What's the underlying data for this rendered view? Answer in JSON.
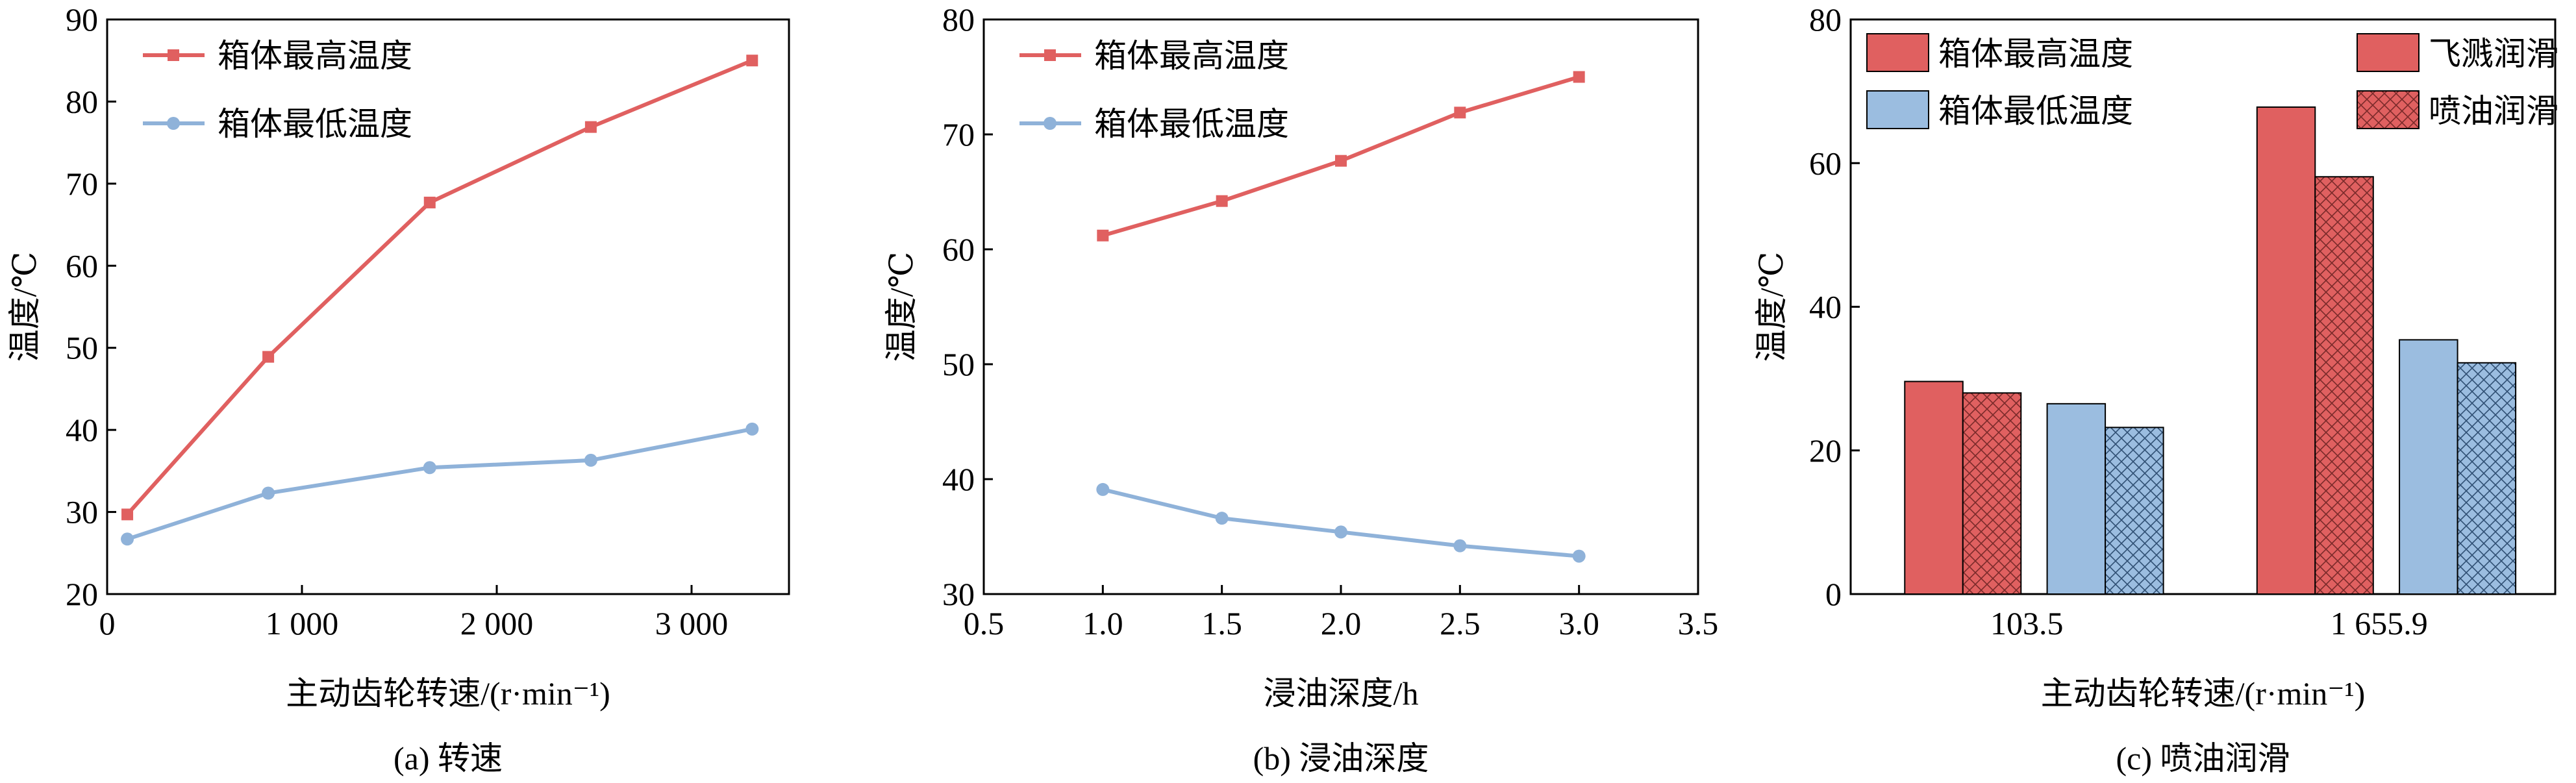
{
  "colors": {
    "red": "#e06060",
    "blue": "#9bbde0",
    "red_dark": "#c0392b",
    "blue_dark": "#4a7ab5",
    "line_red": "#e06060",
    "line_blue": "#8fb2d9"
  },
  "chart_data": [
    {
      "type": "line",
      "caption": "(a)  转速",
      "xlabel": "主动齿轮转速/(r·min⁻¹)",
      "ylabel": "温度/℃",
      "xlim": [
        0,
        3500
      ],
      "ylim": [
        20,
        90
      ],
      "xticks": [
        0,
        1000,
        2000,
        3000
      ],
      "xtick_labels": [
        "0",
        "1 000",
        "2 000",
        "3 000"
      ],
      "yticks": [
        20,
        30,
        40,
        50,
        60,
        70,
        80,
        90
      ],
      "ytick_labels": [
        "20",
        "30",
        "40",
        "50",
        "60",
        "70",
        "80",
        "90"
      ],
      "legend_position": "top-left",
      "series": [
        {
          "name": "箱体最高温度",
          "marker": "square",
          "color": "#e06060",
          "x": [
            103.5,
            827,
            1655.9,
            2483,
            3311
          ],
          "y": [
            29.7,
            48.9,
            67.7,
            76.9,
            85.0
          ]
        },
        {
          "name": "箱体最低温度",
          "marker": "circle",
          "color": "#8fb2d9",
          "x": [
            103.5,
            827,
            1655.9,
            2483,
            3311
          ],
          "y": [
            26.7,
            32.3,
            35.4,
            36.3,
            40.1
          ]
        }
      ]
    },
    {
      "type": "line",
      "caption": "(b)  浸油深度",
      "xlabel": "浸油深度/h",
      "ylabel": "温度/℃",
      "xlim": [
        0.5,
        3.5
      ],
      "ylim": [
        30,
        80
      ],
      "xticks": [
        0.5,
        1.0,
        1.5,
        2.0,
        2.5,
        3.0,
        3.5
      ],
      "xtick_labels": [
        "0.5",
        "1.0",
        "1.5",
        "2.0",
        "2.5",
        "3.0",
        "3.5"
      ],
      "yticks": [
        30,
        40,
        50,
        60,
        70,
        80
      ],
      "ytick_labels": [
        "30",
        "40",
        "50",
        "60",
        "70",
        "80"
      ],
      "legend_position": "top-left",
      "series": [
        {
          "name": "箱体最高温度",
          "marker": "square",
          "color": "#e06060",
          "x": [
            1.0,
            1.5,
            2.0,
            2.5,
            3.0
          ],
          "y": [
            61.2,
            64.2,
            67.7,
            71.9,
            75.0
          ]
        },
        {
          "name": "箱体最低温度",
          "marker": "circle",
          "color": "#8fb2d9",
          "x": [
            1.0,
            1.5,
            2.0,
            2.5,
            3.0
          ],
          "y": [
            39.1,
            36.6,
            35.4,
            34.2,
            33.3
          ]
        }
      ]
    },
    {
      "type": "bar",
      "caption": "(c)  喷油润滑",
      "xlabel": "主动齿轮转速/(r·min⁻¹)",
      "ylabel": "温度/℃",
      "ylim": [
        0,
        80
      ],
      "yticks": [
        0,
        20,
        40,
        60,
        80
      ],
      "ytick_labels": [
        "0",
        "20",
        "40",
        "60",
        "80"
      ],
      "categories": [
        "103.5",
        "1 655.9"
      ],
      "legend_position": "top",
      "legend": [
        {
          "label": "箱体最高温度",
          "color": "#e06060",
          "hatch": false
        },
        {
          "label": "箱体最低温度",
          "color": "#9bbde0",
          "hatch": false
        },
        {
          "label": "飞溅润滑",
          "color": "#e06060",
          "hatch": false
        },
        {
          "label": "喷油润滑",
          "color": "#e06060",
          "hatch": true
        }
      ],
      "series": [
        {
          "name": "箱体最高温度 飞溅润滑",
          "color": "#e06060",
          "hatch": false,
          "values": [
            29.6,
            67.8
          ]
        },
        {
          "name": "箱体最高温度 喷油润滑",
          "color": "#e06060",
          "hatch": true,
          "values": [
            28.0,
            58.1
          ]
        },
        {
          "name": "箱体最低温度 飞溅润滑",
          "color": "#9bbde0",
          "hatch": false,
          "values": [
            26.5,
            35.4
          ]
        },
        {
          "name": "箱体最低温度 喷油润滑",
          "color": "#9bbde0",
          "hatch": true,
          "values": [
            23.2,
            32.2
          ]
        }
      ]
    }
  ]
}
